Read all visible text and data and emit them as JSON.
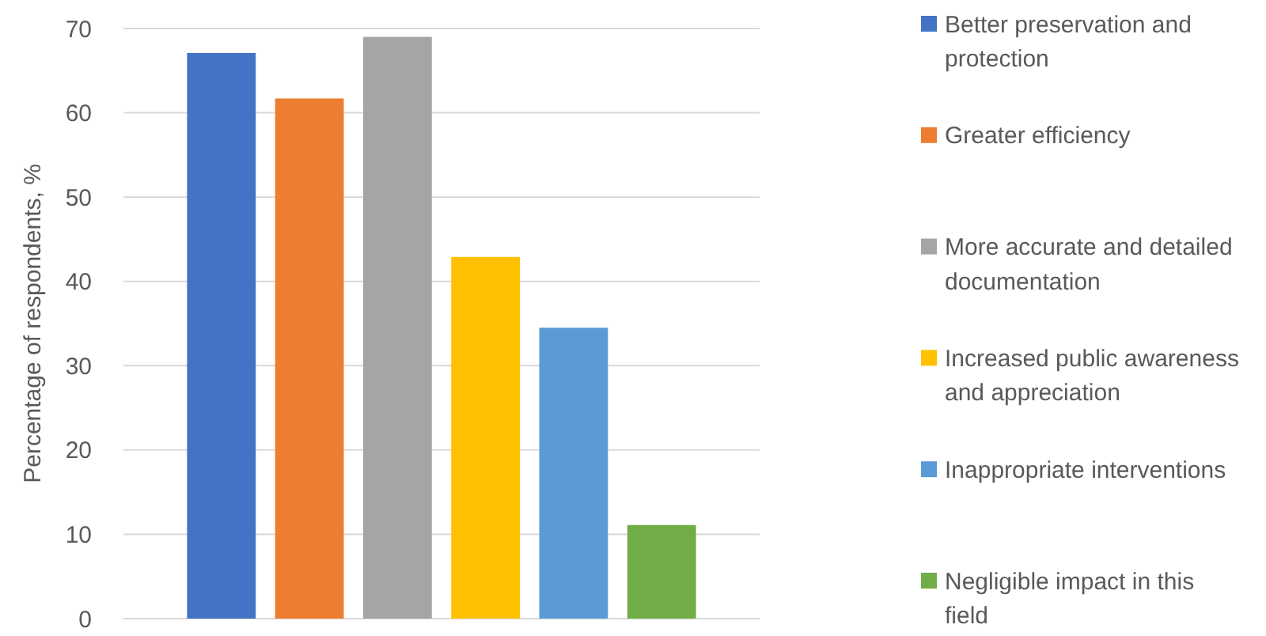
{
  "chart_data": {
    "type": "bar",
    "ylabel": "Percentage of respondents, %",
    "categories": [
      null
    ],
    "series": [
      {
        "name": "Better preservation and protection",
        "color": "#4472c4",
        "values": [
          67.1
        ]
      },
      {
        "name": "Greater efficiency",
        "color": "#ed7d31",
        "values": [
          61.7
        ]
      },
      {
        "name": "More accurate and detailed documentation",
        "color": "#a5a5a5",
        "values": [
          69.0
        ]
      },
      {
        "name": "Increased public awareness and appreciation",
        "color": "#ffc000",
        "values": [
          42.9
        ]
      },
      {
        "name": "Inappropriate interventions",
        "color": "#5b9bd5",
        "values": [
          34.5
        ]
      },
      {
        "name": "Negligible impact in this field",
        "color": "#70ad47",
        "values": [
          11.1
        ]
      }
    ],
    "ylim": [
      0,
      70
    ],
    "yticks": [
      0,
      10,
      20,
      30,
      40,
      50,
      60,
      70
    ],
    "grid": "y",
    "legend": "right"
  }
}
